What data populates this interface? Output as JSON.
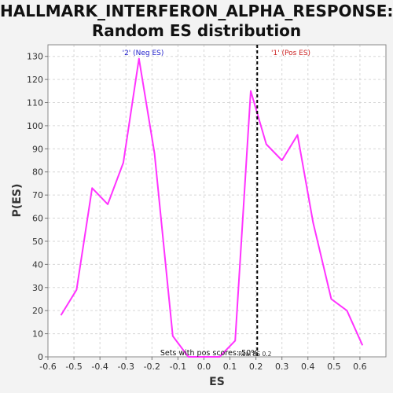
{
  "chart_data": {
    "type": "line",
    "title": "HALLMARK_INTERFERON_ALPHA_RESPONSE:",
    "subtitle": "Random ES distribution",
    "xlabel": "ES",
    "ylabel": "P(ES)",
    "xlim": [
      -0.6,
      0.7
    ],
    "ylim": [
      0,
      135
    ],
    "xticks": [
      -0.6,
      -0.5,
      -0.4,
      -0.3,
      -0.2,
      -0.1,
      0.0,
      0.1,
      0.2,
      0.3,
      0.4,
      0.5,
      0.6
    ],
    "xtick_labels": [
      "-0.6",
      "-0.5",
      "-0.4",
      "-0.3",
      "-0.2",
      "-0.1",
      "0.0",
      "0.1",
      "0.2",
      "0.3",
      "0.4",
      "0.5",
      "0.6"
    ],
    "yticks": [
      0,
      10,
      20,
      30,
      40,
      50,
      60,
      70,
      80,
      90,
      100,
      110,
      120,
      130
    ],
    "ytick_labels": [
      "0",
      "10",
      "20",
      "30",
      "40",
      "50",
      "60",
      "70",
      "80",
      "90",
      "100",
      "110",
      "120",
      "130"
    ],
    "grid": true,
    "series": [
      {
        "color": "#ff33ff",
        "x": [
          -0.55,
          -0.49,
          -0.43,
          -0.37,
          -0.31,
          -0.25,
          -0.19,
          -0.12,
          -0.06,
          0.0,
          0.06,
          0.12,
          0.18,
          0.24,
          0.3,
          0.36,
          0.42,
          0.49,
          0.55,
          0.61
        ],
        "y": [
          18,
          29,
          73,
          66,
          84,
          129,
          88,
          9,
          0,
          0,
          0,
          7,
          115,
          92,
          85,
          96,
          58,
          25,
          20,
          5
        ]
      }
    ],
    "markers": [
      {
        "x": 0.205,
        "label": "Real ES 0.2",
        "style": "dashed",
        "color": "#000000"
      }
    ],
    "annotations": {
      "neg_label": "'2' (Neg ES)",
      "neg_color": "#2222cc",
      "pos_label": "'1' (Pos ES)",
      "pos_color": "#cc2222",
      "bottom_text": "Sets with pos scores: 50%"
    }
  }
}
